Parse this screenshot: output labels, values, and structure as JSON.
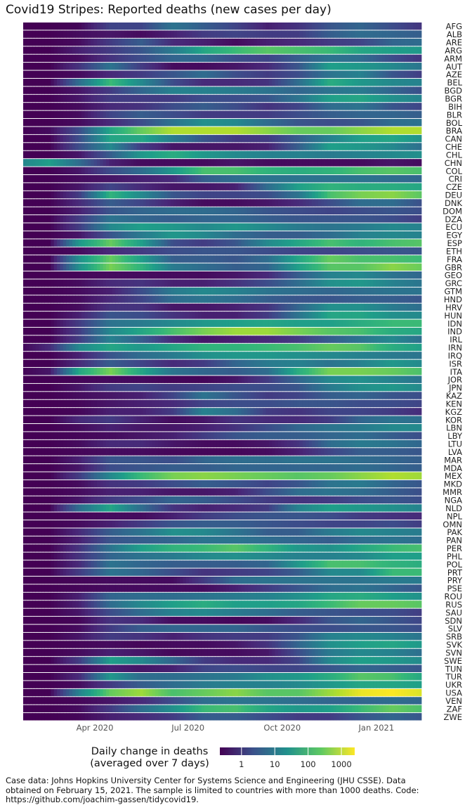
{
  "chart_data": {
    "type": "heatmap",
    "title": "Covid19 Stripes: Reported deaths (new cases per day)",
    "x_tick_labels": [
      "Apr 2020",
      "Jul 2020",
      "Oct 2020",
      "Jan 2021"
    ],
    "x_range": [
      "2020-01-22",
      "2021-02-14"
    ],
    "scale": "log10",
    "colormap": "viridis",
    "legend": {
      "title": "Daily change in deaths\n(averaged over 7 days)",
      "ticks": [
        "1",
        "10",
        "100",
        "1000"
      ],
      "placement": "bottom"
    },
    "countries": [
      "AFG",
      "ALB",
      "ARE",
      "ARG",
      "ARM",
      "AUT",
      "AZE",
      "BEL",
      "BGD",
      "BGR",
      "BIH",
      "BLR",
      "BOL",
      "BRA",
      "CAN",
      "CHE",
      "CHL",
      "CHN",
      "COL",
      "CRI",
      "CZE",
      "DEU",
      "DNK",
      "DOM",
      "DZA",
      "ECU",
      "EGY",
      "ESP",
      "ETH",
      "FRA",
      "GBR",
      "GEO",
      "GRC",
      "GTM",
      "HND",
      "HRV",
      "HUN",
      "IDN",
      "IND",
      "IRL",
      "IRN",
      "IRQ",
      "ISR",
      "ITA",
      "JOR",
      "JPN",
      "KAZ",
      "KEN",
      "KGZ",
      "KOR",
      "LBN",
      "LBY",
      "LTU",
      "LVA",
      "MAR",
      "MDA",
      "MEX",
      "MKD",
      "MMR",
      "NGA",
      "NLD",
      "NPL",
      "OMN",
      "PAK",
      "PAN",
      "PER",
      "PHL",
      "POL",
      "PRT",
      "PRY",
      "PSE",
      "ROU",
      "RUS",
      "SAU",
      "SDN",
      "SLV",
      "SRB",
      "SVK",
      "SVN",
      "SWE",
      "TUN",
      "TUR",
      "UKR",
      "USA",
      "VEN",
      "ZAF",
      "ZWE"
    ],
    "months": [
      "2020-01",
      "2020-02",
      "2020-03",
      "2020-04",
      "2020-05",
      "2020-06",
      "2020-07",
      "2020-08",
      "2020-09",
      "2020-10",
      "2020-11",
      "2020-12",
      "2021-01",
      "2021-02"
    ],
    "values": [
      [
        0,
        0,
        0.05,
        0.7,
        0.7,
        1.3,
        1.0,
        0.7,
        0.3,
        0.5,
        0.9,
        1.1,
        0.8,
        0.5
      ],
      [
        0,
        0,
        0.1,
        0.2,
        0.1,
        0.3,
        0.6,
        0.7,
        0.6,
        0.6,
        1.0,
        1.2,
        1.1,
        1.0
      ],
      [
        0,
        0,
        0.1,
        0.6,
        1.0,
        0.4,
        0.3,
        0.1,
        0.3,
        0.4,
        0.6,
        0.7,
        1.1,
        1.2
      ],
      [
        0,
        0,
        0.3,
        0.6,
        0.9,
        1.4,
        2.0,
        2.3,
        2.5,
        2.4,
        2.3,
        2.0,
        1.9,
        1.8
      ],
      [
        0,
        0,
        0.1,
        0.5,
        0.8,
        1.1,
        1.1,
        0.8,
        0.7,
        1.0,
        1.3,
        1.2,
        0.8,
        0.5
      ],
      [
        0,
        0,
        0.5,
        1.3,
        0.6,
        0.1,
        0.1,
        0.2,
        0.4,
        0.9,
        1.9,
        1.8,
        1.6,
        1.3
      ],
      [
        0,
        0,
        0.1,
        0.4,
        0.6,
        0.9,
        1.2,
        0.8,
        0.6,
        0.8,
        1.3,
        1.5,
        0.9,
        0.6
      ],
      [
        0,
        0,
        1.2,
        2.3,
        1.6,
        0.8,
        0.4,
        0.4,
        0.5,
        1.2,
        2.1,
        1.8,
        1.6,
        1.5
      ],
      [
        0,
        0,
        0.2,
        0.6,
        1.1,
        1.5,
        1.5,
        1.4,
        1.3,
        1.1,
        1.3,
        1.4,
        1.1,
        0.8
      ],
      [
        0,
        0,
        0.2,
        0.6,
        0.6,
        0.6,
        0.8,
        0.8,
        0.9,
        1.3,
        1.9,
        2.0,
        1.7,
        1.5
      ],
      [
        0,
        0,
        0.1,
        0.4,
        0.5,
        0.8,
        1.0,
        0.8,
        0.5,
        0.7,
        1.2,
        1.3,
        0.9,
        0.7
      ],
      [
        0,
        0,
        0.1,
        0.7,
        1.0,
        0.8,
        0.6,
        0.6,
        0.6,
        0.8,
        1.0,
        1.1,
        1.1,
        1.0
      ],
      [
        0,
        0,
        0.1,
        0.4,
        0.8,
        1.3,
        1.7,
        1.6,
        1.2,
        0.9,
        0.8,
        0.9,
        1.2,
        1.3
      ],
      [
        0,
        0.1,
        0.8,
        2.0,
        2.6,
        3.0,
        3.0,
        3.0,
        2.8,
        2.6,
        2.6,
        2.8,
        3.0,
        3.0
      ],
      [
        0,
        0,
        0.8,
        2.0,
        2.0,
        1.4,
        0.9,
        0.6,
        0.6,
        1.0,
        1.5,
        1.9,
        2.0,
        1.7
      ],
      [
        0,
        0,
        0.8,
        1.6,
        0.6,
        0.2,
        0.2,
        0.2,
        0.3,
        1.0,
        1.9,
        1.8,
        1.6,
        1.2
      ],
      [
        0,
        0,
        0.2,
        1.0,
        1.8,
        2.1,
        1.8,
        1.6,
        1.5,
        1.5,
        1.4,
        1.5,
        1.6,
        1.7
      ],
      [
        1.5,
        1.9,
        1.2,
        0.3,
        0.1,
        0.1,
        0.1,
        0.2,
        0.1,
        0.1,
        0.1,
        0.1,
        0.2,
        0.1
      ],
      [
        0,
        0,
        0.2,
        0.8,
        1.2,
        1.8,
        2.4,
        2.4,
        2.2,
        2.1,
        2.2,
        2.4,
        2.5,
        2.4
      ],
      [
        0,
        0,
        0.1,
        0.2,
        0.3,
        0.4,
        1.0,
        1.2,
        1.3,
        1.3,
        1.3,
        1.3,
        1.2,
        1.1
      ],
      [
        0,
        0,
        0.2,
        0.7,
        0.4,
        0.2,
        0.2,
        0.3,
        1.2,
        1.9,
        2.2,
        2.1,
        2.1,
        2.0
      ],
      [
        0,
        0,
        0.6,
        2.2,
        1.6,
        0.9,
        0.7,
        0.7,
        0.8,
        1.3,
        2.4,
        2.7,
        2.8,
        2.5
      ],
      [
        0,
        0,
        0.4,
        1.0,
        0.7,
        0.3,
        0.1,
        0.1,
        0.2,
        0.4,
        0.8,
        1.2,
        1.2,
        0.8
      ],
      [
        0,
        0,
        0.3,
        0.9,
        1.1,
        1.2,
        1.2,
        1.1,
        0.9,
        0.8,
        0.7,
        0.8,
        0.9,
        0.8
      ],
      [
        0,
        0,
        0.6,
        1.3,
        1.1,
        1.0,
        1.1,
        1.1,
        1.0,
        0.9,
        0.9,
        0.9,
        0.8,
        0.6
      ],
      [
        0,
        0,
        0.6,
        1.6,
        1.9,
        1.8,
        1.6,
        1.8,
        1.6,
        1.4,
        1.3,
        1.4,
        1.6,
        1.5
      ],
      [
        0,
        0,
        0.2,
        0.9,
        1.4,
        1.8,
        1.6,
        1.2,
        1.0,
        1.0,
        1.2,
        1.5,
        1.6,
        1.5
      ],
      [
        0,
        0,
        1.8,
        2.6,
        1.9,
        0.8,
        0.6,
        0.9,
        1.6,
        2.0,
        2.4,
        2.2,
        2.4,
        2.5
      ],
      [
        0,
        0,
        0.1,
        0.4,
        0.6,
        0.8,
        0.9,
        0.9,
        0.8,
        0.7,
        0.7,
        0.8,
        0.9,
        0.9
      ],
      [
        0,
        0,
        1.7,
        2.6,
        1.9,
        1.0,
        1.0,
        0.9,
        1.2,
        2.0,
        2.6,
        2.4,
        2.4,
        2.3
      ],
      [
        0,
        0,
        1.7,
        2.7,
        2.2,
        1.4,
        1.2,
        1.0,
        1.1,
        1.9,
        2.5,
        2.5,
        2.8,
        2.6
      ],
      [
        0,
        0,
        0.05,
        0.1,
        0.1,
        0.1,
        0.1,
        0.2,
        0.4,
        1.0,
        1.5,
        1.6,
        1.3,
        1.1
      ],
      [
        0,
        0,
        0.1,
        0.4,
        0.5,
        0.3,
        0.3,
        0.5,
        0.8,
        1.2,
        1.7,
        1.8,
        1.5,
        1.3
      ],
      [
        0,
        0,
        0.1,
        0.3,
        0.8,
        1.4,
        1.6,
        1.5,
        1.3,
        1.2,
        1.1,
        1.2,
        1.3,
        1.3
      ],
      [
        0,
        0,
        0.1,
        0.4,
        0.7,
        1.2,
        1.3,
        1.2,
        1.0,
        0.9,
        0.9,
        1.0,
        1.0,
        0.9
      ],
      [
        0,
        0,
        0.1,
        0.5,
        0.5,
        0.2,
        0.2,
        0.3,
        0.5,
        1.1,
        1.7,
        1.7,
        1.4,
        1.2
      ],
      [
        0,
        0,
        0.3,
        0.9,
        0.8,
        0.5,
        0.3,
        0.3,
        0.6,
        1.3,
        2.0,
        2.0,
        1.7,
        1.6
      ],
      [
        0,
        0,
        0.6,
        1.3,
        1.4,
        1.6,
        1.8,
        1.9,
        2.0,
        1.9,
        1.9,
        2.1,
        2.3,
        2.3
      ],
      [
        0,
        0,
        0.6,
        1.6,
        2.0,
        2.4,
        2.7,
        2.9,
        2.9,
        2.7,
        2.5,
        2.4,
        2.1,
        2.0
      ],
      [
        0,
        0,
        0.6,
        1.5,
        1.0,
        0.4,
        0.2,
        0.3,
        0.4,
        0.6,
        1.0,
        1.3,
        1.6,
        1.2
      ],
      [
        0,
        0.4,
        1.6,
        2.0,
        1.8,
        2.0,
        2.2,
        2.2,
        2.3,
        2.4,
        2.6,
        2.5,
        2.1,
        1.9
      ],
      [
        0,
        0,
        0.3,
        0.9,
        1.2,
        1.4,
        1.7,
        1.8,
        1.8,
        1.7,
        1.6,
        1.5,
        1.4,
        1.3
      ],
      [
        0,
        0,
        0.4,
        1.0,
        0.7,
        0.4,
        0.6,
        1.1,
        1.4,
        1.5,
        1.3,
        1.5,
        1.8,
        1.6
      ],
      [
        0,
        0.2,
        2.0,
        2.7,
        2.0,
        1.3,
        1.1,
        1.0,
        1.2,
        2.1,
        2.7,
        2.7,
        2.6,
        2.4
      ],
      [
        0,
        0,
        0.05,
        0.1,
        0.1,
        0.05,
        0.05,
        0.2,
        0.6,
        1.1,
        1.6,
        1.7,
        1.5,
        1.3
      ],
      [
        0,
        0,
        0.2,
        0.6,
        0.7,
        0.6,
        0.7,
        0.8,
        0.8,
        0.9,
        1.4,
        1.7,
        1.8,
        1.6
      ],
      [
        0,
        0,
        0.1,
        0.2,
        0.3,
        0.7,
        1.3,
        0.9,
        0.6,
        0.7,
        1.0,
        1.1,
        0.9,
        0.8
      ],
      [
        0,
        0,
        0.05,
        0.2,
        0.3,
        0.4,
        0.7,
        0.8,
        0.8,
        0.9,
        0.9,
        0.8,
        0.8,
        0.7
      ],
      [
        0,
        0,
        0.05,
        0.3,
        0.3,
        0.6,
        1.5,
        1.2,
        0.6,
        0.5,
        0.7,
        0.7,
        0.6,
        0.4
      ],
      [
        0,
        0,
        0.4,
        0.6,
        0.3,
        0.1,
        0.2,
        0.5,
        0.4,
        0.4,
        0.6,
        1.1,
        1.3,
        1.2
      ],
      [
        0,
        0,
        0.1,
        0.3,
        0.2,
        0.2,
        0.3,
        0.5,
        0.8,
        1.1,
        1.3,
        1.4,
        1.6,
        1.6
      ],
      [
        0,
        0,
        0.05,
        0.1,
        0.2,
        0.3,
        0.6,
        0.9,
        1.0,
        1.0,
        1.1,
        1.2,
        1.0,
        0.8
      ],
      [
        0,
        0,
        0.1,
        0.4,
        0.4,
        0.2,
        0.1,
        0.1,
        0.2,
        0.5,
        1.2,
        1.4,
        1.3,
        1.1
      ],
      [
        0,
        0,
        0.05,
        0.1,
        0.1,
        0.05,
        0.05,
        0.05,
        0.1,
        0.3,
        0.7,
        1.0,
        1.0,
        0.9
      ],
      [
        0,
        0,
        0.3,
        0.9,
        0.9,
        0.8,
        1.1,
        1.2,
        1.2,
        1.3,
        1.3,
        1.2,
        1.1,
        1.0
      ],
      [
        0,
        0,
        0.2,
        0.8,
        0.9,
        1.0,
        1.0,
        1.1,
        1.1,
        1.1,
        1.1,
        1.2,
        1.1,
        1.0
      ],
      [
        0,
        0,
        0.6,
        1.6,
        2.3,
        2.7,
        2.8,
        2.7,
        2.6,
        2.5,
        2.6,
        2.8,
        3.0,
        2.9
      ],
      [
        0,
        0,
        0.1,
        0.5,
        0.6,
        0.8,
        1.0,
        0.9,
        0.7,
        0.9,
        1.3,
        1.4,
        1.1,
        0.9
      ],
      [
        0,
        0,
        0.1,
        0.3,
        0.3,
        0.2,
        0.2,
        0.3,
        0.8,
        1.2,
        1.3,
        1.2,
        1.0,
        0.8
      ],
      [
        0,
        0,
        0.2,
        0.6,
        0.8,
        1.1,
        1.0,
        0.8,
        0.6,
        0.5,
        0.6,
        0.8,
        0.9,
        0.8
      ],
      [
        0,
        0,
        1.2,
        2.0,
        1.2,
        0.5,
        0.3,
        0.4,
        0.6,
        1.5,
        1.9,
        1.8,
        1.7,
        1.5
      ],
      [
        0,
        0,
        0.05,
        0.1,
        0.1,
        0.3,
        0.6,
        0.8,
        0.9,
        0.9,
        0.8,
        0.6,
        0.5,
        0.4
      ],
      [
        0,
        0,
        0.1,
        0.3,
        0.6,
        0.9,
        1.0,
        1.0,
        0.9,
        0.8,
        0.7,
        0.7,
        0.8,
        0.6
      ],
      [
        0,
        0,
        0.4,
        1.0,
        1.3,
        1.7,
        1.6,
        1.3,
        1.0,
        1.0,
        1.4,
        1.6,
        1.5,
        1.4
      ],
      [
        0,
        0,
        0.3,
        0.9,
        1.0,
        1.1,
        1.3,
        1.3,
        1.2,
        1.1,
        1.0,
        1.2,
        1.3,
        1.2
      ],
      [
        0,
        0,
        0.5,
        1.3,
        1.9,
        2.2,
        2.3,
        2.5,
        2.2,
        1.8,
        1.7,
        2.0,
        2.3,
        2.4
      ],
      [
        0,
        0,
        0.5,
        1.1,
        1.3,
        1.4,
        1.6,
        1.7,
        1.6,
        1.5,
        1.5,
        1.6,
        1.9,
        1.9
      ],
      [
        0,
        0,
        0.4,
        1.3,
        1.1,
        1.0,
        1.0,
        1.0,
        1.1,
        1.8,
        2.4,
        2.4,
        2.2,
        2.1
      ],
      [
        0,
        0,
        0.6,
        1.3,
        1.1,
        0.8,
        0.5,
        0.6,
        0.7,
        1.0,
        1.6,
        1.6,
        2.3,
        2.3
      ],
      [
        0,
        0,
        0.05,
        0.1,
        0.1,
        0.1,
        0.6,
        1.2,
        1.3,
        1.3,
        1.3,
        1.3,
        1.4,
        1.4
      ],
      [
        0,
        0,
        0.05,
        0.1,
        0.1,
        0.1,
        0.1,
        0.3,
        0.6,
        0.9,
        1.2,
        1.3,
        1.1,
        0.9
      ],
      [
        0,
        0,
        0.3,
        1.1,
        1.2,
        1.2,
        1.3,
        1.4,
        1.5,
        1.7,
        2.0,
        2.1,
        1.9,
        1.7
      ],
      [
        0,
        0,
        0.3,
        1.2,
        1.6,
        1.9,
        2.1,
        1.9,
        1.9,
        2.0,
        2.3,
        2.6,
        2.6,
        2.5
      ],
      [
        0,
        0,
        0.2,
        0.8,
        1.2,
        1.5,
        1.6,
        1.4,
        1.2,
        1.0,
        0.9,
        0.8,
        0.8,
        0.6
      ],
      [
        0,
        0,
        0.05,
        0.5,
        0.4,
        0.1,
        0.1,
        0.05,
        0.1,
        0.4,
        0.9,
        1.1,
        0.9,
        0.7
      ],
      [
        0,
        0,
        0.1,
        0.6,
        1.0,
        1.1,
        1.1,
        1.1,
        0.9,
        0.8,
        0.8,
        0.9,
        0.9,
        0.8
      ],
      [
        0,
        0,
        0.2,
        0.6,
        0.5,
        0.3,
        0.5,
        0.6,
        0.6,
        0.9,
        1.5,
        1.6,
        1.5,
        1.3
      ],
      [
        0,
        0,
        0.05,
        0.1,
        0.05,
        0.1,
        0.1,
        0.2,
        0.5,
        1.1,
        1.7,
        1.9,
        2.0,
        1.8
      ],
      [
        0,
        0,
        0.1,
        0.3,
        0.2,
        0.05,
        0.1,
        0.1,
        0.2,
        0.8,
        1.4,
        1.6,
        1.5,
        1.2
      ],
      [
        0,
        0,
        0.6,
        1.9,
        1.6,
        1.1,
        0.6,
        0.4,
        0.4,
        0.7,
        1.6,
        1.9,
        1.8,
        1.6
      ],
      [
        0,
        0,
        0.05,
        0.3,
        0.2,
        0.3,
        0.7,
        0.8,
        0.7,
        0.7,
        0.9,
        1.1,
        1.0,
        0.9
      ],
      [
        0,
        0,
        0.4,
        1.8,
        1.2,
        1.2,
        1.3,
        1.4,
        1.7,
        1.8,
        2.1,
        2.5,
        2.4,
        2.0
      ],
      [
        0,
        0,
        0.1,
        0.6,
        1.0,
        1.2,
        1.4,
        1.5,
        1.5,
        1.6,
        1.8,
        2.0,
        2.0,
        1.9
      ],
      [
        0,
        0,
        1.5,
        2.6,
        2.9,
        2.4,
        2.6,
        2.8,
        2.5,
        2.5,
        2.9,
        3.3,
        3.4,
        3.2
      ],
      [
        0,
        0,
        0.05,
        0.2,
        0.4,
        0.8,
        1.2,
        1.3,
        1.3,
        1.2,
        1.1,
        1.1,
        1.2,
        1.1
      ],
      [
        0,
        0,
        0.1,
        0.6,
        1.2,
        1.7,
        2.3,
        2.4,
        2.0,
        1.8,
        1.9,
        2.3,
        2.6,
        2.4
      ],
      [
        0,
        0,
        0.05,
        0.3,
        0.4,
        0.6,
        1.0,
        1.0,
        0.8,
        0.6,
        0.6,
        0.9,
        1.1,
        0.9
      ]
    ]
  }
}
